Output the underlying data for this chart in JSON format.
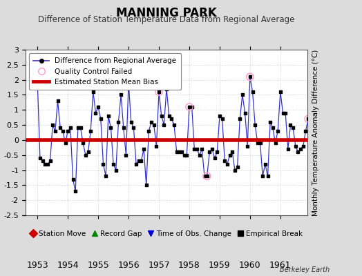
{
  "title": "MANNING PARK",
  "subtitle": "Difference of Station Temperature Data from Regional Average",
  "ylabel": "Monthly Temperature Anomaly Difference (°C)",
  "xlabel_years": [
    1953,
    1954,
    1955,
    1956,
    1957,
    1958,
    1959,
    1960,
    1961
  ],
  "bias": 0.0,
  "background_color": "#dcdcdc",
  "plot_bg_color": "#ffffff",
  "line_color": "#3333cc",
  "marker_color": "#000000",
  "bias_color": "#cc0000",
  "qc_color": "#ff99cc",
  "ylim": [
    -2.5,
    3.0
  ],
  "yticks": [
    -2.5,
    -2.0,
    -1.5,
    -1.0,
    -0.5,
    0.0,
    0.5,
    1.0,
    1.5,
    2.0,
    2.5,
    3.0
  ],
  "ytick_labels": [
    "-2.5",
    "-2",
    "-1.5",
    "-1",
    "-0.5",
    "0",
    "0.5",
    "1",
    "1.5",
    "2",
    "2.5",
    "3"
  ],
  "start_year": 1953,
  "start_month": 1,
  "values": [
    1.9,
    -0.6,
    -0.7,
    -0.8,
    -0.8,
    -0.7,
    0.5,
    0.3,
    1.3,
    0.4,
    0.3,
    -0.1,
    0.3,
    0.4,
    -1.3,
    -1.7,
    0.4,
    0.4,
    -0.1,
    -0.5,
    -0.4,
    0.3,
    1.6,
    0.9,
    1.1,
    0.7,
    -0.8,
    -1.2,
    0.8,
    0.4,
    -0.8,
    -1.0,
    0.6,
    1.5,
    0.4,
    -0.5,
    1.9,
    0.6,
    0.4,
    -0.8,
    -0.7,
    -0.7,
    -0.3,
    -1.5,
    0.3,
    0.6,
    0.5,
    -0.2,
    1.6,
    0.8,
    0.5,
    1.7,
    0.8,
    0.7,
    0.5,
    -0.4,
    -0.4,
    -0.4,
    -0.5,
    -0.5,
    1.1,
    1.1,
    -0.3,
    -0.3,
    -0.5,
    -0.3,
    -1.2,
    -1.2,
    -0.4,
    -0.3,
    -0.6,
    -0.4,
    0.8,
    0.7,
    -0.7,
    -0.8,
    -0.5,
    -0.4,
    -1.0,
    -0.9,
    0.7,
    1.5,
    0.9,
    -0.2,
    2.1,
    1.6,
    0.5,
    -0.1,
    -0.1,
    -1.2,
    -0.8,
    -1.2,
    0.6,
    0.4,
    -0.1,
    0.3,
    1.6,
    0.9,
    0.9,
    -0.3,
    0.5,
    0.4,
    -0.2,
    -0.4,
    -0.3,
    -0.2,
    0.3,
    0.7
  ],
  "qc_indices": [
    48,
    60,
    67,
    84,
    107
  ],
  "legend_bottom_items": [
    {
      "label": "Station Move",
      "color": "#cc0000",
      "marker": "D"
    },
    {
      "label": "Record Gap",
      "color": "#008800",
      "marker": "^"
    },
    {
      "label": "Time of Obs. Change",
      "color": "#0000cc",
      "marker": "v"
    },
    {
      "label": "Empirical Break",
      "color": "#000000",
      "marker": "s"
    }
  ]
}
